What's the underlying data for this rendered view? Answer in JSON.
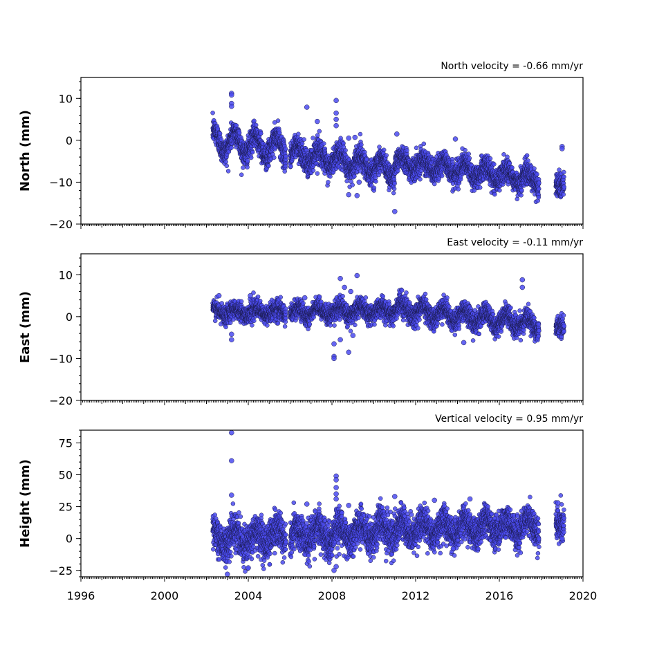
{
  "chart_data": [
    {
      "type": "scatter",
      "title": "North velocity = -0.66 mm/yr",
      "ylabel": "North (mm)",
      "xlim": [
        1996,
        2020
      ],
      "ylim": [
        -20,
        15
      ],
      "yticks": [
        10,
        0,
        -10,
        -20
      ],
      "ytick_labels": [
        "10",
        "0",
        "−10",
        "−20"
      ],
      "color": "#4b4bf0",
      "series_segments": [
        {
          "t0": 2002.3,
          "t1": 2005.8,
          "v0": 0.0,
          "v1": -2.0,
          "amp": 2.5,
          "noise": 1.5
        },
        {
          "t0": 2006.0,
          "t1": 2011.0,
          "v0": -3.0,
          "v1": -7.0,
          "amp": 2.0,
          "noise": 1.5
        },
        {
          "t0": 2011.0,
          "t1": 2017.9,
          "v0": -5.0,
          "v1": -9.5,
          "amp": 1.5,
          "noise": 1.4
        },
        {
          "t0": 2018.7,
          "t1": 2019.1,
          "v0": -10.0,
          "v1": -10.5,
          "amp": 0.5,
          "noise": 1.5
        }
      ],
      "outliers": [
        {
          "x": 2003.2,
          "y": 11.2
        },
        {
          "x": 2003.2,
          "y": 10.8
        },
        {
          "x": 2003.2,
          "y": 8.8
        },
        {
          "x": 2003.2,
          "y": 8.1
        },
        {
          "x": 2006.8,
          "y": 7.9
        },
        {
          "x": 2007.3,
          "y": 4.5
        },
        {
          "x": 2008.2,
          "y": 9.5
        },
        {
          "x": 2008.2,
          "y": 6.5
        },
        {
          "x": 2008.2,
          "y": 5.0
        },
        {
          "x": 2008.2,
          "y": 3.5
        },
        {
          "x": 2008.8,
          "y": -13.0
        },
        {
          "x": 2009.2,
          "y": -13.2
        },
        {
          "x": 2009.3,
          "y": -10.0
        },
        {
          "x": 2011.0,
          "y": -17.0
        },
        {
          "x": 2011.1,
          "y": 1.5
        },
        {
          "x": 2013.9,
          "y": 0.3
        },
        {
          "x": 2019.0,
          "y": -1.5
        },
        {
          "x": 2019.0,
          "y": -2.0
        },
        {
          "x": 2008.8,
          "y": 0.5
        },
        {
          "x": 2009.1,
          "y": 0.7
        }
      ]
    },
    {
      "type": "scatter",
      "title": "East velocity = -0.11 mm/yr",
      "ylabel": "East (mm)",
      "xlim": [
        1996,
        2020
      ],
      "ylim": [
        -20,
        15
      ],
      "yticks": [
        10,
        0,
        -10,
        -20
      ],
      "ytick_labels": [
        "10",
        "0",
        "−10",
        "−20"
      ],
      "color": "#4b4bf0",
      "series_segments": [
        {
          "t0": 2002.3,
          "t1": 2005.8,
          "v0": 1.2,
          "v1": 1.0,
          "amp": 0.8,
          "noise": 1.1
        },
        {
          "t0": 2006.0,
          "t1": 2011.0,
          "v0": 1.0,
          "v1": 1.5,
          "amp": 1.0,
          "noise": 1.1
        },
        {
          "t0": 2011.0,
          "t1": 2017.9,
          "v0": 2.0,
          "v1": -2.0,
          "amp": 1.5,
          "noise": 1.2
        },
        {
          "t0": 2018.7,
          "t1": 2019.1,
          "v0": -2.0,
          "v1": -2.0,
          "amp": 0.5,
          "noise": 1.3
        }
      ],
      "outliers": [
        {
          "x": 2008.4,
          "y": 9.1
        },
        {
          "x": 2009.2,
          "y": 9.8
        },
        {
          "x": 2008.6,
          "y": 7.0
        },
        {
          "x": 2008.9,
          "y": 6.0
        },
        {
          "x": 2017.1,
          "y": 8.8
        },
        {
          "x": 2017.1,
          "y": 7.0
        },
        {
          "x": 2008.1,
          "y": -9.5
        },
        {
          "x": 2008.1,
          "y": -10.0
        },
        {
          "x": 2008.8,
          "y": -8.5
        },
        {
          "x": 2008.1,
          "y": -6.5
        },
        {
          "x": 2003.2,
          "y": -5.5
        },
        {
          "x": 2003.2,
          "y": -4.2
        },
        {
          "x": 2014.3,
          "y": -6.2
        },
        {
          "x": 2008.4,
          "y": -5.5
        },
        {
          "x": 2009.0,
          "y": -4.5
        },
        {
          "x": 2002.6,
          "y": 5.0
        },
        {
          "x": 2004.1,
          "y": 5.0
        },
        {
          "x": 2006.7,
          "y": 4.5
        }
      ]
    },
    {
      "type": "scatter",
      "title": "Vertical velocity = 0.95 mm/yr",
      "ylabel": "Height (mm)",
      "xlim": [
        1996,
        2020
      ],
      "ylim": [
        -30,
        85
      ],
      "yticks": [
        75,
        50,
        25,
        0,
        -25
      ],
      "ytick_labels": [
        "75",
        "50",
        "25",
        "0",
        "−25"
      ],
      "color": "#4b4bf0",
      "series_segments": [
        {
          "t0": 2002.3,
          "t1": 2005.8,
          "v0": 0.0,
          "v1": 2.0,
          "amp": 6.0,
          "noise": 7.0
        },
        {
          "t0": 2006.0,
          "t1": 2011.0,
          "v0": 2.0,
          "v1": 7.0,
          "amp": 6.0,
          "noise": 7.0
        },
        {
          "t0": 2011.0,
          "t1": 2017.9,
          "v0": 7.0,
          "v1": 10.0,
          "amp": 6.0,
          "noise": 6.5
        },
        {
          "t0": 2018.7,
          "t1": 2019.1,
          "v0": 14.0,
          "v1": 12.0,
          "amp": 2.0,
          "noise": 6.0
        }
      ],
      "outliers": [
        {
          "x": 2003.2,
          "y": 83
        },
        {
          "x": 2003.2,
          "y": 61
        },
        {
          "x": 2003.2,
          "y": 34
        },
        {
          "x": 2008.2,
          "y": 49
        },
        {
          "x": 2008.2,
          "y": 46
        },
        {
          "x": 2008.2,
          "y": 40
        },
        {
          "x": 2008.2,
          "y": 35
        },
        {
          "x": 2008.2,
          "y": 31
        },
        {
          "x": 2008.8,
          "y": 26
        },
        {
          "x": 2006.8,
          "y": 27
        },
        {
          "x": 2011.0,
          "y": 33
        },
        {
          "x": 2012.9,
          "y": 30
        },
        {
          "x": 2014.6,
          "y": 31
        },
        {
          "x": 2003.0,
          "y": -28
        },
        {
          "x": 2008.1,
          "y": -25
        },
        {
          "x": 2008.2,
          "y": -22
        },
        {
          "x": 2004.0,
          "y": -23
        },
        {
          "x": 2018.8,
          "y": 28
        },
        {
          "x": 2019.0,
          "y": 0
        },
        {
          "x": 2013.8,
          "y": -8
        }
      ]
    }
  ],
  "x_axis": {
    "ticks": [
      1996,
      2000,
      2004,
      2008,
      2012,
      2016,
      2020
    ],
    "tick_labels": [
      "1996",
      "2000",
      "2004",
      "2008",
      "2012",
      "2016",
      "2020"
    ]
  }
}
